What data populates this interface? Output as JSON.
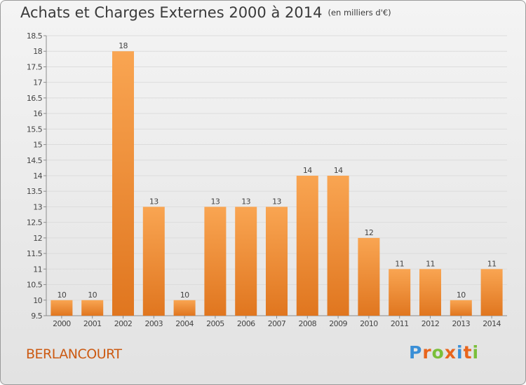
{
  "header": {
    "title": "Achats et Charges Externes 2000 à 2014",
    "unit": "(en milliers d'€)"
  },
  "footer": {
    "commune": "BERLANCOURT",
    "logo": "Proxiti",
    "logo_colors": [
      "#3a8fd6",
      "#e8651c",
      "#7abf3a",
      "#e8651c",
      "#3a8fd6",
      "#e8651c",
      "#7abf3a"
    ]
  },
  "colors": {
    "bar_top": "#f9a552",
    "bar_bottom": "#e0761f",
    "axis": "#8c8c8c",
    "grid": "#dcdcdc",
    "text": "#444444",
    "commune": "#cc5a12"
  },
  "chart_data": {
    "type": "bar",
    "categories": [
      "2000",
      "2001",
      "2002",
      "2003",
      "2004",
      "2005",
      "2006",
      "2007",
      "2008",
      "2009",
      "2010",
      "2011",
      "2012",
      "2013",
      "2014"
    ],
    "values": [
      10,
      10,
      18,
      13,
      10,
      13,
      13,
      13,
      14,
      14,
      12,
      11,
      11,
      10,
      11
    ],
    "data_labels": [
      "10",
      "10",
      "18",
      "13",
      "10",
      "13",
      "13",
      "13",
      "14",
      "14",
      "12",
      "11",
      "11",
      "10",
      "11"
    ],
    "ylim": [
      9.5,
      18.5
    ],
    "yticks": [
      9.5,
      10,
      10.5,
      11,
      11.5,
      12,
      12.5,
      13,
      13.5,
      14,
      14.5,
      15,
      15.5,
      16,
      16.5,
      17,
      17.5,
      18,
      18.5
    ],
    "ytick_labels": [
      "9.5",
      "10",
      "10.5",
      "11",
      "11.5",
      "12",
      "12.5",
      "13",
      "13.5",
      "14",
      "14.5",
      "15",
      "15.5",
      "16",
      "16.5",
      "17",
      "17.5",
      "18",
      "18.5"
    ],
    "grid": true,
    "legend": "none"
  }
}
